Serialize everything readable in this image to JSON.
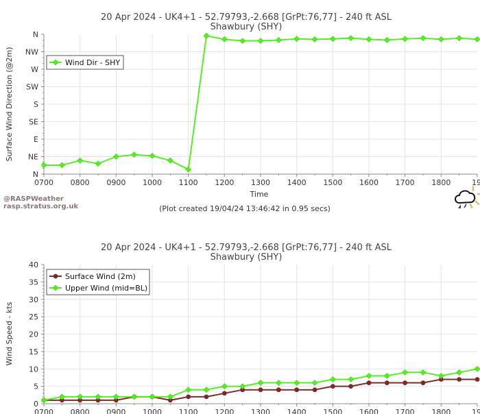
{
  "watermark": {
    "line1": "@RASPWeather",
    "line2": "rasp.stratus.org.uk"
  },
  "footer_note": "(Plot created 19/04/24 13:46:42 in 0.95 secs)",
  "weather_icon": "rain-cloud-sun-icon",
  "colors": {
    "dir_series": "#55ee22",
    "surface_wind": "#7a2a2a",
    "upper_wind": "#55ee22",
    "grid": "#e4e4e4"
  },
  "chart_data": [
    {
      "type": "line",
      "title": "20 Apr 2024 - UK4+1 - 52.79793,-2.668 [GrPt:76,77]  - 240 ft ASL",
      "subtitle": "Shawbury (SHY)",
      "xlabel": "Time",
      "ylabel": "Surface Wind Direction (@2m)",
      "x_tick_labels": [
        "0700",
        "0800",
        "0900",
        "1000",
        "1100",
        "1200",
        "1300",
        "1400",
        "1500",
        "1600",
        "1700",
        "1800",
        "190"
      ],
      "y_tick_labels": [
        "N",
        "NE",
        "E",
        "SE",
        "S",
        "SW",
        "W",
        "NW",
        "N"
      ],
      "ylim": [
        0,
        360
      ],
      "xlim": [
        "0700",
        "1900"
      ],
      "grid": true,
      "legend": "top-left",
      "x": [
        "0700",
        "0730",
        "0800",
        "0830",
        "0900",
        "0930",
        "1000",
        "1030",
        "1100",
        "1130",
        "1200",
        "1230",
        "1300",
        "1330",
        "1400",
        "1430",
        "1500",
        "1530",
        "1600",
        "1630",
        "1700",
        "1730",
        "1800",
        "1830",
        "1900"
      ],
      "series": [
        {
          "name": "Wind Dir - SHY",
          "values": [
            23,
            23,
            35,
            27,
            45,
            50,
            47,
            35,
            12,
            356,
            347,
            343,
            343,
            345,
            348,
            347,
            348,
            350,
            347,
            345,
            348,
            350,
            347,
            350,
            347
          ]
        }
      ]
    },
    {
      "type": "line",
      "title": "20 Apr 2024 - UK4+1 - 52.79793,-2.668 [GrPt:76,77]  - 240 ft ASL",
      "subtitle": "Shawbury (SHY)",
      "xlabel": "",
      "ylabel": "Wind Speed - kts",
      "x_tick_labels": [
        "0700",
        "0800",
        "0900",
        "1000",
        "1100",
        "1200",
        "1300",
        "1400",
        "1500",
        "1600",
        "1700",
        "1800",
        "190"
      ],
      "y_tick_labels": [
        "0",
        "5",
        "10",
        "15",
        "20",
        "25",
        "30",
        "35",
        "40"
      ],
      "ylim": [
        0,
        40
      ],
      "xlim": [
        "0700",
        "1900"
      ],
      "grid": true,
      "legend": "top-left",
      "x": [
        "0700",
        "0730",
        "0800",
        "0830",
        "0900",
        "0930",
        "1000",
        "1030",
        "1100",
        "1130",
        "1200",
        "1230",
        "1300",
        "1330",
        "1400",
        "1430",
        "1500",
        "1530",
        "1600",
        "1630",
        "1700",
        "1730",
        "1800",
        "1830",
        "1900"
      ],
      "series": [
        {
          "name": "Surface Wind (2m)",
          "values": [
            1,
            1,
            1,
            1,
            1,
            2,
            2,
            1,
            2,
            2,
            3,
            4,
            4,
            4,
            4,
            4,
            5,
            5,
            6,
            6,
            6,
            6,
            7,
            7,
            7
          ]
        },
        {
          "name": "Upper Wind (mid=BL)",
          "values": [
            1,
            2,
            2,
            2,
            2,
            2,
            2,
            2,
            4,
            4,
            5,
            5,
            6,
            6,
            6,
            6,
            7,
            7,
            8,
            8,
            9,
            9,
            8,
            9,
            10
          ]
        }
      ]
    }
  ]
}
